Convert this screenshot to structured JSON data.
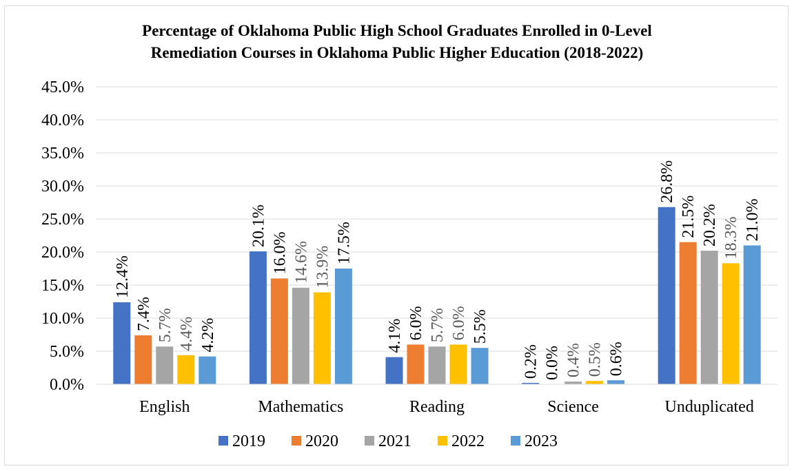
{
  "chart_data": {
    "type": "bar",
    "title": "Percentage of Oklahoma Public High School Graduates Enrolled in 0-Level Remediation Courses in Oklahoma Public Higher Education (2018-2022)",
    "title_lines": [
      "Percentage of Oklahoma Public High School Graduates Enrolled in 0-Level",
      "Remediation Courses in Oklahoma Public Higher Education (2018-2022)"
    ],
    "categories": [
      "English",
      "Mathematics",
      "Reading",
      "Science",
      "Unduplicated"
    ],
    "series": [
      {
        "name": "2019",
        "color": "#4472c4",
        "values": [
          12.4,
          20.1,
          4.1,
          0.2,
          26.8
        ],
        "labels": [
          "12.4%",
          "20.1%",
          "4.1%",
          "0.2%",
          "26.8%"
        ]
      },
      {
        "name": "2020",
        "color": "#ed7d31",
        "values": [
          7.4,
          16.0,
          6.0,
          0.0,
          21.5
        ],
        "labels": [
          "7.4%",
          "16.0%",
          "6.0%",
          "0.0%",
          "21.5%"
        ]
      },
      {
        "name": "2021",
        "color": "#a5a5a5",
        "values": [
          5.7,
          14.6,
          5.7,
          0.4,
          20.2
        ],
        "labels": [
          "5.7%",
          "14.6%",
          "5.7%",
          "0.4%",
          "20.2%"
        ]
      },
      {
        "name": "2022",
        "color": "#ffc000",
        "values": [
          4.4,
          13.9,
          6.0,
          0.5,
          18.3
        ],
        "labels": [
          "4.4%",
          "13.9%",
          "6.0%",
          "0.5%",
          "18.3%"
        ]
      },
      {
        "name": "2023",
        "color": "#5b9bd5",
        "values": [
          4.2,
          17.5,
          5.5,
          0.6,
          21.0
        ],
        "labels": [
          "4.2%",
          "17.5%",
          "5.5%",
          "0.6%",
          "21.0%"
        ]
      }
    ],
    "ylim": [
      0,
      45
    ],
    "ytick_labels": [
      "0.0%",
      "5.0%",
      "10.0%",
      "15.0%",
      "20.0%",
      "25.0%",
      "30.0%",
      "35.0%",
      "40.0%",
      "45.0%"
    ],
    "grid": true,
    "legend_position": "bottom",
    "data_label_colors": {
      "default": "#000000",
      "muted": "#595959"
    }
  }
}
